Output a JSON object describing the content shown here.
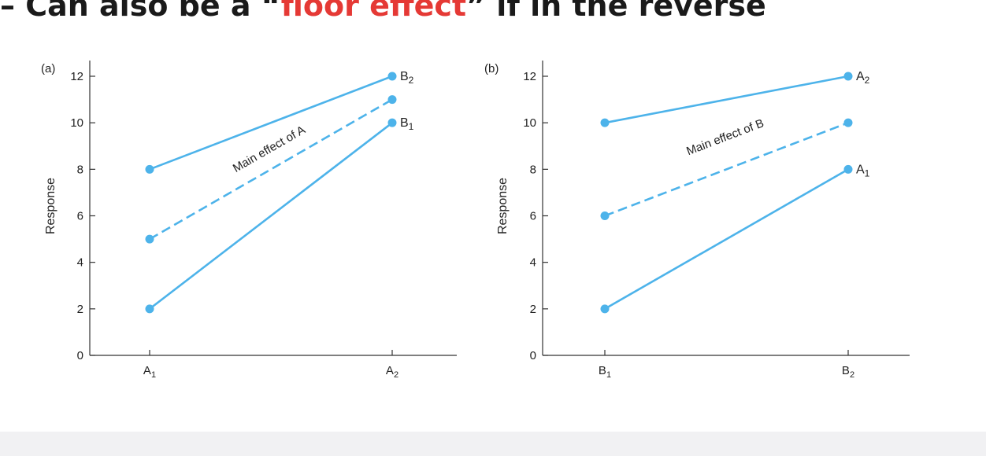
{
  "heading": {
    "prefix": "– Can also be a “",
    "highlight": "floor effect",
    "suffix": "” if in the reverse"
  },
  "colors": {
    "line": "#4db3ea",
    "highlight": "#e53935",
    "axis": "#333333",
    "bottom_bar": "#f1f1f3"
  },
  "chart_data": [
    {
      "type": "line",
      "panel_label": "(a)",
      "xlabel": "",
      "ylabel": "Response",
      "categories": [
        "A",
        "A"
      ],
      "category_subscripts": [
        "1",
        "2"
      ],
      "ylim": [
        0,
        12
      ],
      "yticks": [
        0,
        2,
        4,
        6,
        8,
        10,
        12
      ],
      "series": [
        {
          "name": "B",
          "subscript": "2",
          "values": [
            8,
            12
          ],
          "style": "solid"
        },
        {
          "name": "",
          "subscript": "",
          "values": [
            5,
            11
          ],
          "style": "dashed"
        },
        {
          "name": "B",
          "subscript": "1",
          "values": [
            2,
            10
          ],
          "style": "solid"
        }
      ],
      "annotation": "Main effect of A"
    },
    {
      "type": "line",
      "panel_label": "(b)",
      "xlabel": "",
      "ylabel": "Response",
      "categories": [
        "B",
        "B"
      ],
      "category_subscripts": [
        "1",
        "2"
      ],
      "ylim": [
        0,
        12
      ],
      "yticks": [
        0,
        2,
        4,
        6,
        8,
        10,
        12
      ],
      "series": [
        {
          "name": "A",
          "subscript": "2",
          "values": [
            10,
            12
          ],
          "style": "solid"
        },
        {
          "name": "",
          "subscript": "",
          "values": [
            6,
            10
          ],
          "style": "dashed"
        },
        {
          "name": "A",
          "subscript": "1",
          "values": [
            2,
            8
          ],
          "style": "solid"
        }
      ],
      "annotation": "Main effect of B"
    }
  ]
}
